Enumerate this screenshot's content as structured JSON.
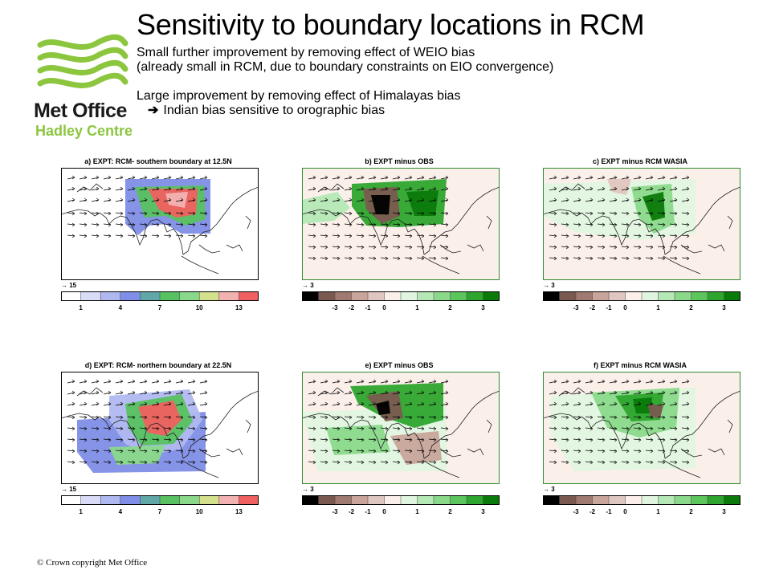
{
  "header": {
    "title": "Sensitivity to boundary locations in RCM",
    "bullets": [
      "Small further improvement by removing effect of WEIO bias",
      "(already small in RCM, due to boundary constraints on EIO convergence)",
      "",
      "Large improvement by removing effect of Himalayas bias"
    ],
    "sub_bullet_arrow": "➔",
    "sub_bullet": "Indian bias sensitive to orographic bias"
  },
  "logo": {
    "line1": "Met Office",
    "line2": "Hadley Centre",
    "color_green": "#8cc63f",
    "color_dark": "#1a1a1a"
  },
  "footer": {
    "copyright": "© Crown copyright   Met Office"
  },
  "colorbars": {
    "absolute": {
      "colors": [
        "#ffffff",
        "#d8dcf6",
        "#b0b8f0",
        "#7f8ee6",
        "#5fa7a9",
        "#58c160",
        "#8ad98a",
        "#d4e08a",
        "#f3b2b2",
        "#f06060"
      ],
      "ticks": [
        "1",
        "4",
        "7",
        "10",
        "13"
      ]
    },
    "difference": {
      "colors": [
        "#000000",
        "#7a5a50",
        "#a07a70",
        "#c8a49a",
        "#e0c6c0",
        "#fbefea",
        "#e0f5e0",
        "#b6e8b6",
        "#8ad98a",
        "#5cc65c",
        "#2ea52e",
        "#0a7a0a"
      ],
      "ticks": [
        "-3",
        "-2",
        "-1",
        "0",
        "1",
        "2",
        "3"
      ]
    }
  },
  "panels": [
    {
      "title": "a) EXPT: RCM- southern boundary at 12.5N",
      "vector_ref": "15",
      "colorbar": "absolute"
    },
    {
      "title": "b) EXPT minus OBS",
      "vector_ref": "3",
      "colorbar": "difference"
    },
    {
      "title": "c) EXPT minus RCM WASIA",
      "vector_ref": "3",
      "colorbar": "difference"
    },
    {
      "title": "d) EXPT: RCM- northern boundary at 22.5N",
      "vector_ref": "15",
      "colorbar": "absolute"
    },
    {
      "title": "e) EXPT minus OBS",
      "vector_ref": "3",
      "colorbar": "difference"
    },
    {
      "title": "f) EXPT minus RCM WASIA",
      "vector_ref": "3",
      "colorbar": "difference"
    }
  ]
}
